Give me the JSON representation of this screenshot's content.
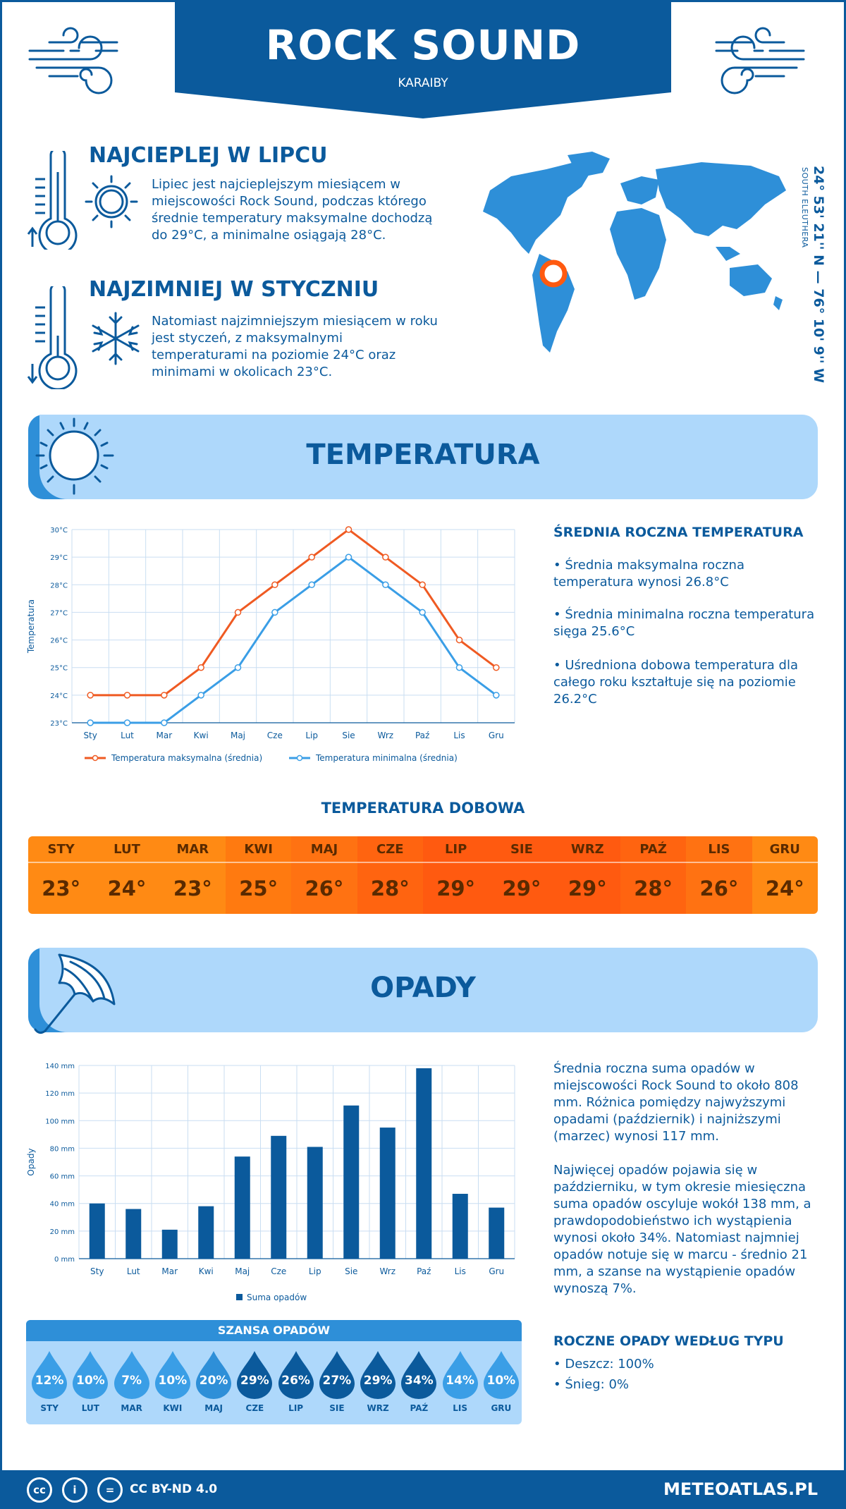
{
  "header": {
    "title": "ROCK SOUND",
    "subtitle": "KARAIBY"
  },
  "hottest": {
    "title": "NAJCIEPLEJ W LIPCU",
    "text": "Lipiec jest najcieplejszym miesiącem w miejscowości Rock Sound, podczas którego średnie temperatury maksymalne dochodzą do 29°C, a minimalne osiągają 28°C."
  },
  "coldest": {
    "title": "NAJZIMNIEJ W STYCZNIU",
    "text": "Natomiast najzimniejszym miesiącem w roku jest styczeń, z maksymalnymi temperaturami na poziomie 24°C oraz minimami w okolicach 23°C."
  },
  "location": {
    "coords": "24° 53' 21'' N — 76° 10' 9'' W",
    "region": "SOUTH ELEUTHERA"
  },
  "temperature_section": {
    "title": "TEMPERATURA",
    "side_title": "ŚREDNIA ROCZNA TEMPERATURA",
    "p1": "• Średnia maksymalna roczna temperatura wynosi 26.8°C",
    "p2": "• Średnia minimalna roczna temperatura sięga 25.6°C",
    "p3": "• Uśredniona dobowa temperatura dla całego roku kształtuje się na poziomie 26.2°C"
  },
  "daily": {
    "title": "TEMPERATURA DOBOWA",
    "months": [
      "STY",
      "LUT",
      "MAR",
      "KWI",
      "MAJ",
      "CZE",
      "LIP",
      "SIE",
      "WRZ",
      "PAŹ",
      "LIS",
      "GRU"
    ],
    "temps": [
      "23°",
      "24°",
      "23°",
      "25°",
      "26°",
      "28°",
      "29°",
      "29°",
      "29°",
      "28°",
      "26°",
      "24°"
    ],
    "colors": [
      "#ff8a14",
      "#ff8a14",
      "#ff8a14",
      "#ff7a10",
      "#ff7212",
      "#ff6410",
      "#ff5a10",
      "#ff5a10",
      "#ff5a10",
      "#ff6410",
      "#ff7212",
      "#ff8a14"
    ]
  },
  "precip_section": {
    "title": "OPADY",
    "p1": "Średnia roczna suma opadów w miejscowości Rock Sound to około 808 mm. Różnica pomiędzy najwyższymi opadami (październik) i najniższymi (marzec) wynosi 117 mm.",
    "p2": "Najwięcej opadów pojawia się w październiku, w tym okresie miesięczna suma opadów oscyluje wokół 138 mm, a prawdopodobieństwo ich wystąpienia wynosi około 34%. Natomiast najmniej opadów notuje się w marcu - średnio 21 mm, a szanse na wystąpienie opadów wynoszą 7%.",
    "type_title": "ROCZNE OPADY WEDŁUG TYPU",
    "rain": "• Deszcz: 100%",
    "snow": "• Śnieg: 0%"
  },
  "chance": {
    "title": "SZANSA OPADÓW",
    "months": [
      "STY",
      "LUT",
      "MAR",
      "KWI",
      "MAJ",
      "CZE",
      "LIP",
      "SIE",
      "WRZ",
      "PAŹ",
      "LIS",
      "GRU"
    ],
    "values": [
      "12%",
      "10%",
      "7%",
      "10%",
      "20%",
      "29%",
      "26%",
      "27%",
      "29%",
      "34%",
      "14%",
      "10%"
    ],
    "colors": [
      "#3a9ee6",
      "#3a9ee6",
      "#3a9ee6",
      "#3a9ee6",
      "#2e8fd8",
      "#0b5a9c",
      "#0b5a9c",
      "#0b5a9c",
      "#0b5a9c",
      "#0b5a9c",
      "#3a9ee6",
      "#3a9ee6"
    ]
  },
  "footer": {
    "license": "CC BY-ND 4.0",
    "site": "METEOATLAS.PL",
    "cc": "cc",
    "person": "i",
    "nd": "="
  },
  "chart_data": [
    {
      "type": "line",
      "categories": [
        "Sty",
        "Lut",
        "Mar",
        "Kwi",
        "Maj",
        "Cze",
        "Lip",
        "Sie",
        "Wrz",
        "Paź",
        "Lis",
        "Gru"
      ],
      "series": [
        {
          "name": "Temperatura maksymalna (średnia)",
          "color": "#ef5a22",
          "values": [
            24,
            24,
            24,
            25,
            27,
            28,
            29,
            30,
            29,
            28,
            26,
            25
          ]
        },
        {
          "name": "Temperatura minimalna (średnia)",
          "color": "#3a9ee6",
          "values": [
            23,
            23,
            23,
            24,
            25,
            27,
            28,
            29,
            28,
            27,
            25,
            24
          ]
        }
      ],
      "ylabel": "Temperatura",
      "ylim": [
        23,
        30
      ],
      "yticks": [
        "23°C",
        "24°C",
        "25°C",
        "26°C",
        "27°C",
        "28°C",
        "29°C",
        "30°C"
      ],
      "grid": true,
      "legend": "bottom"
    },
    {
      "type": "bar",
      "categories": [
        "Sty",
        "Lut",
        "Mar",
        "Kwi",
        "Maj",
        "Cze",
        "Lip",
        "Sie",
        "Wrz",
        "Paź",
        "Lis",
        "Gru"
      ],
      "series": [
        {
          "name": "Suma opadów",
          "color": "#0b5a9c",
          "values": [
            40,
            36,
            21,
            38,
            74,
            89,
            81,
            111,
            95,
            138,
            47,
            37
          ]
        }
      ],
      "ylabel": "Opady",
      "ylim": [
        0,
        140
      ],
      "yticks": [
        "0 mm",
        "20 mm",
        "40 mm",
        "60 mm",
        "80 mm",
        "100 mm",
        "120 mm",
        "140 mm"
      ],
      "grid": true,
      "legend": "bottom"
    }
  ]
}
